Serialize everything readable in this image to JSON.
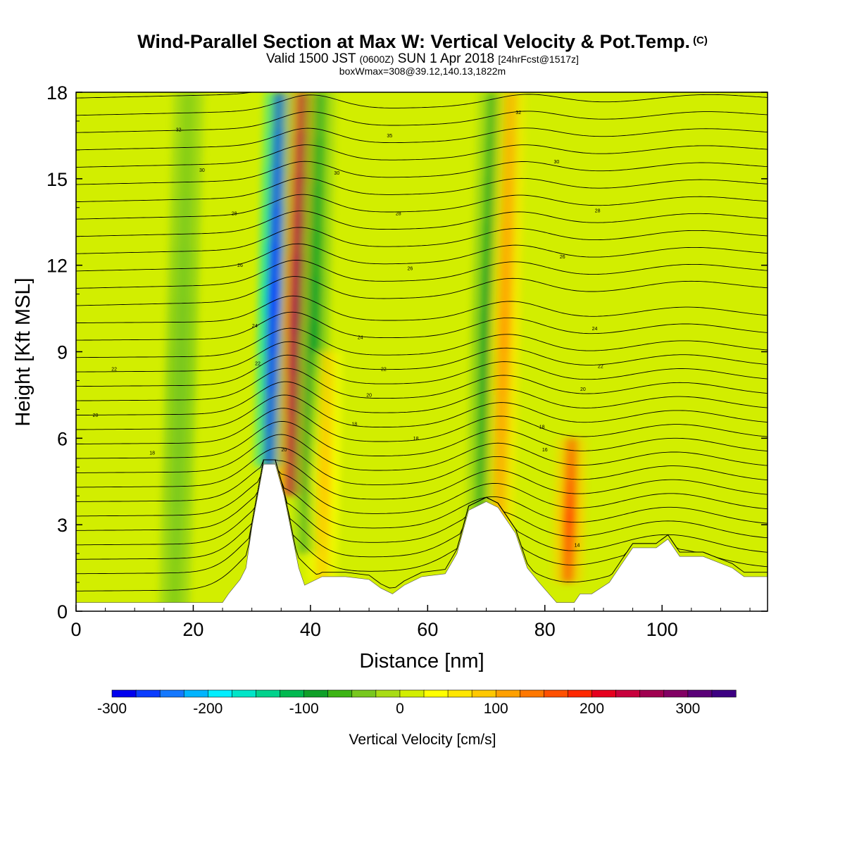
{
  "title": {
    "main": "Wind-Parallel Section at Max W: Vertical Velocity & Pot.Temp.",
    "copyright": "(C)",
    "valid_a": "Valid 1500 JST",
    "valid_b": "(0600Z)",
    "valid_c": "SUN 1 Apr 2018",
    "valid_d": "[24hrFcst@1517z]",
    "box": "boxWmax=308@39.12,140.13,1822m"
  },
  "chart_data": {
    "type": "heatmap",
    "xlabel": "Distance [nm]",
    "ylabel": "Height [Kft MSL]",
    "xlim": [
      0,
      118
    ],
    "ylim": [
      0,
      18
    ],
    "xticks": [
      0,
      20,
      40,
      60,
      80,
      100
    ],
    "yticks": [
      0,
      3,
      6,
      9,
      12,
      15,
      18
    ],
    "colorbar": {
      "label": "Vertical Velocity [cm/s]",
      "min": -300,
      "max": 350,
      "step": 25,
      "tick_values": [
        -300,
        -200,
        -100,
        0,
        100,
        200,
        300
      ],
      "colors": [
        "#0000ee",
        "#0a3cff",
        "#1478ff",
        "#00b4ff",
        "#00eeff",
        "#00e5c8",
        "#00d28c",
        "#00b950",
        "#0fa028",
        "#3cb414",
        "#78c81e",
        "#a8dc14",
        "#d2ee00",
        "#ffff00",
        "#ffe600",
        "#ffc800",
        "#ffa000",
        "#ff7800",
        "#ff5000",
        "#ff2800",
        "#e6001e",
        "#c8003c",
        "#a00050",
        "#820064",
        "#5a0078",
        "#3c0082"
      ]
    },
    "updraft_max": 308,
    "velocity_features": [
      {
        "x": 33.5,
        "y_base": 5,
        "y_top": 18,
        "value": -275
      },
      {
        "x": 37.5,
        "y_base": 4,
        "y_top": 18,
        "value": 270
      },
      {
        "x": 40.5,
        "y_base": 2,
        "y_top": 18,
        "value": -90
      },
      {
        "x": 43,
        "y_base": 1,
        "y_top": 9,
        "value": 90
      },
      {
        "x": 70,
        "y_base": 3,
        "y_top": 18,
        "value": -90
      },
      {
        "x": 73,
        "y_base": 3,
        "y_top": 18,
        "value": 120
      },
      {
        "x": 85,
        "y_base": 1,
        "y_top": 6,
        "value": 150
      },
      {
        "x": 18,
        "y_base": 0,
        "y_top": 18,
        "value": -50
      }
    ],
    "terrain": [
      {
        "x": 0,
        "h": 0.3
      },
      {
        "x": 25,
        "h": 0.3
      },
      {
        "x": 26,
        "h": 0.6
      },
      {
        "x": 28,
        "h": 1.1
      },
      {
        "x": 29,
        "h": 1.5
      },
      {
        "x": 30,
        "h": 2.9
      },
      {
        "x": 31,
        "h": 4.0
      },
      {
        "x": 32,
        "h": 5.1
      },
      {
        "x": 34,
        "h": 5.1
      },
      {
        "x": 35.5,
        "h": 4.0
      },
      {
        "x": 37,
        "h": 2.5
      },
      {
        "x": 38,
        "h": 1.5
      },
      {
        "x": 39,
        "h": 0.9
      },
      {
        "x": 42,
        "h": 1.2
      },
      {
        "x": 44,
        "h": 1.2
      },
      {
        "x": 46,
        "h": 1.2
      },
      {
        "x": 50,
        "h": 1.1
      },
      {
        "x": 52,
        "h": 0.8
      },
      {
        "x": 54,
        "h": 0.6
      },
      {
        "x": 56,
        "h": 0.9
      },
      {
        "x": 59,
        "h": 1.2
      },
      {
        "x": 63,
        "h": 1.3
      },
      {
        "x": 65,
        "h": 2.0
      },
      {
        "x": 67,
        "h": 3.5
      },
      {
        "x": 70,
        "h": 3.8
      },
      {
        "x": 72,
        "h": 3.6
      },
      {
        "x": 75,
        "h": 2.7
      },
      {
        "x": 77,
        "h": 1.5
      },
      {
        "x": 79,
        "h": 1.0
      },
      {
        "x": 82,
        "h": 0.3
      },
      {
        "x": 85,
        "h": 0.3
      },
      {
        "x": 86,
        "h": 0.6
      },
      {
        "x": 88,
        "h": 0.6
      },
      {
        "x": 91,
        "h": 1.0
      },
      {
        "x": 93,
        "h": 1.6
      },
      {
        "x": 95,
        "h": 2.2
      },
      {
        "x": 99,
        "h": 2.2
      },
      {
        "x": 101,
        "h": 2.5
      },
      {
        "x": 103,
        "h": 1.9
      },
      {
        "x": 107,
        "h": 1.9
      },
      {
        "x": 112,
        "h": 1.5
      },
      {
        "x": 114,
        "h": 1.2
      },
      {
        "x": 118,
        "h": 1.2
      }
    ],
    "isentropes": [
      {
        "base": 0.7
      },
      {
        "base": 1.3
      },
      {
        "base": 1.8
      },
      {
        "base": 2.3
      },
      {
        "base": 2.8
      },
      {
        "base": 3.3
      },
      {
        "base": 3.8
      },
      {
        "base": 4.3
      },
      {
        "base": 4.8
      },
      {
        "base": 5.3
      },
      {
        "base": 5.8
      },
      {
        "base": 6.3
      },
      {
        "base": 6.8
      },
      {
        "base": 7.3
      },
      {
        "base": 7.8
      },
      {
        "base": 8.3
      },
      {
        "base": 8.8
      },
      {
        "base": 9.4
      },
      {
        "base": 10.0
      },
      {
        "base": 10.6
      },
      {
        "base": 11.2
      },
      {
        "base": 11.8
      },
      {
        "base": 12.4
      },
      {
        "base": 13.0
      },
      {
        "base": 13.6
      },
      {
        "base": 14.2
      },
      {
        "base": 14.8
      },
      {
        "base": 15.4
      },
      {
        "base": 16.0
      },
      {
        "base": 16.6
      },
      {
        "base": 17.2
      },
      {
        "base": 17.8
      }
    ],
    "contour_labels": [
      {
        "text": "32",
        "x": 17.5,
        "y": 16.7
      },
      {
        "text": "30",
        "x": 21.5,
        "y": 15.3
      },
      {
        "text": "28",
        "x": 27,
        "y": 13.8
      },
      {
        "text": "26",
        "x": 28,
        "y": 12.0
      },
      {
        "text": "24",
        "x": 30.5,
        "y": 9.9
      },
      {
        "text": "22",
        "x": 31,
        "y": 8.6
      },
      {
        "text": "22",
        "x": 6.5,
        "y": 8.4
      },
      {
        "text": "20",
        "x": 3.3,
        "y": 6.8
      },
      {
        "text": "18",
        "x": 13,
        "y": 5.5
      },
      {
        "text": "20",
        "x": 35.5,
        "y": 5.6
      },
      {
        "text": "35",
        "x": 53.5,
        "y": 16.5
      },
      {
        "text": "30",
        "x": 44.5,
        "y": 15.2
      },
      {
        "text": "28",
        "x": 55,
        "y": 13.8
      },
      {
        "text": "26",
        "x": 57,
        "y": 11.9
      },
      {
        "text": "24",
        "x": 48.5,
        "y": 9.5
      },
      {
        "text": "22",
        "x": 52.5,
        "y": 8.4
      },
      {
        "text": "20",
        "x": 50,
        "y": 7.5
      },
      {
        "text": "18",
        "x": 47.5,
        "y": 6.5
      },
      {
        "text": "18",
        "x": 58,
        "y": 6.0
      },
      {
        "text": "32",
        "x": 75.5,
        "y": 17.3
      },
      {
        "text": "30",
        "x": 82,
        "y": 15.6
      },
      {
        "text": "28",
        "x": 89,
        "y": 13.9
      },
      {
        "text": "26",
        "x": 83,
        "y": 12.3
      },
      {
        "text": "24",
        "x": 88.5,
        "y": 9.8
      },
      {
        "text": "22",
        "x": 89.5,
        "y": 8.5
      },
      {
        "text": "20",
        "x": 86.5,
        "y": 7.7
      },
      {
        "text": "18",
        "x": 79.5,
        "y": 6.4
      },
      {
        "text": "16",
        "x": 80,
        "y": 5.6
      },
      {
        "text": "14",
        "x": 85.5,
        "y": 2.3
      }
    ]
  }
}
